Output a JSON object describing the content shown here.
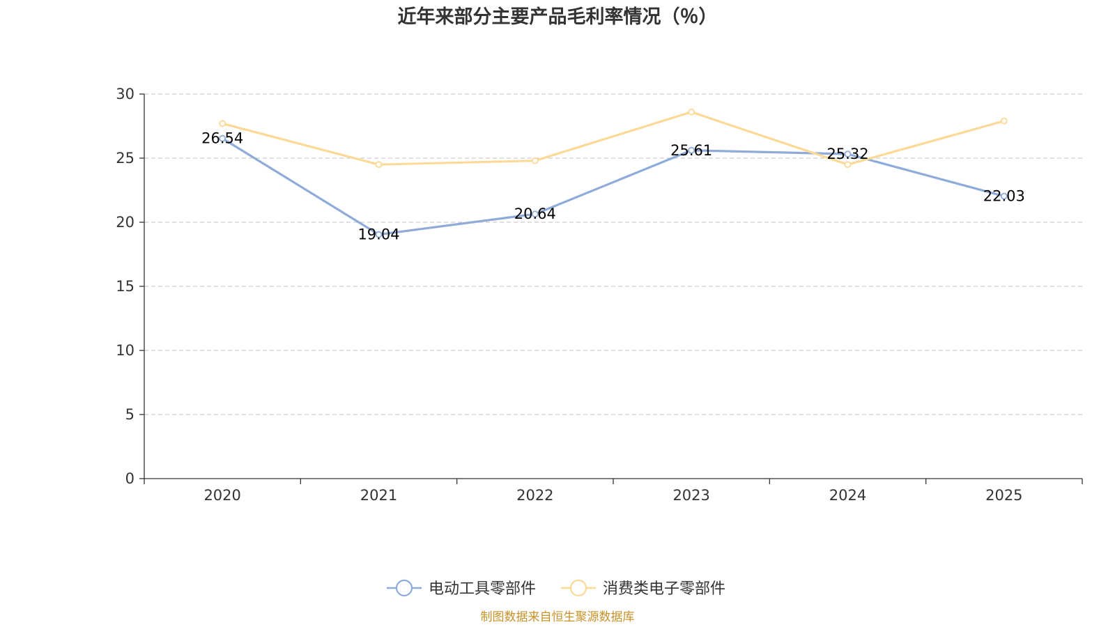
{
  "chart_data": {
    "type": "line",
    "title": "近年来部分主要产品毛利率情况（％）",
    "categories": [
      "2020",
      "2021",
      "2022",
      "2023",
      "2024",
      "2025"
    ],
    "ylim": [
      0,
      30
    ],
    "yticks": [
      0,
      5,
      10,
      15,
      20,
      25,
      30
    ],
    "grid": true,
    "legend_position": "bottom-center",
    "series": [
      {
        "name": "电动工具零部件",
        "color": "#8fabd9",
        "values": [
          26.54,
          19.04,
          20.64,
          25.61,
          25.32,
          22.03
        ],
        "labels": [
          "26.54",
          "19.04",
          "20.64",
          "25.61",
          "25.32",
          "22.03"
        ],
        "show_labels": true
      },
      {
        "name": "消费类电子零部件",
        "color": "#fcd997",
        "values": [
          27.7,
          24.5,
          24.8,
          28.6,
          24.5,
          27.9
        ],
        "show_labels": false
      }
    ],
    "source": "制图数据来自恒生聚源数据库"
  }
}
